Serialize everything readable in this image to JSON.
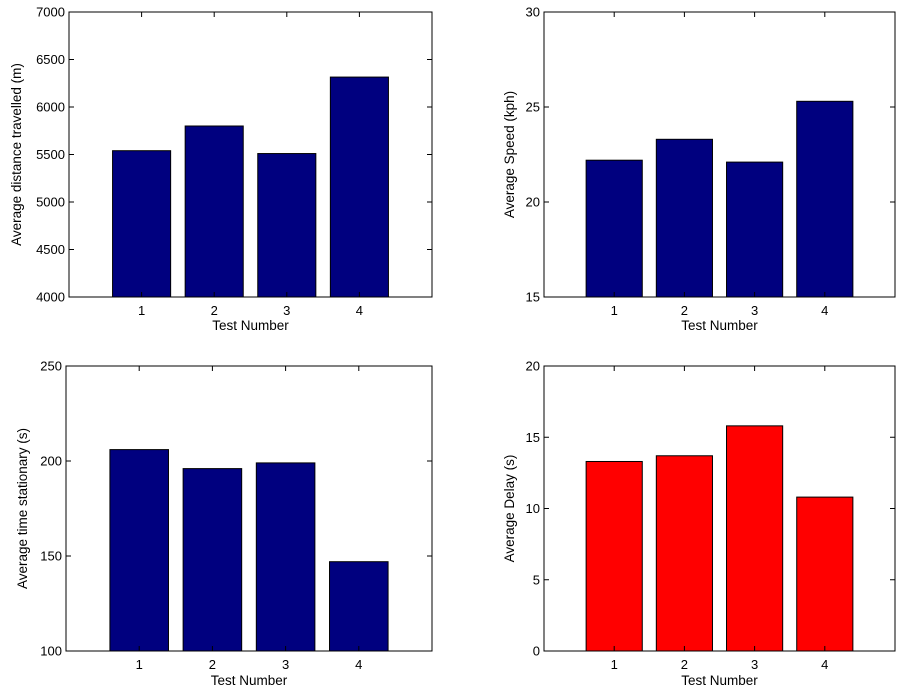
{
  "chart_data": [
    {
      "type": "bar",
      "categories": [
        "1",
        "2",
        "3",
        "4"
      ],
      "values": [
        5540,
        5800,
        5510,
        6315
      ],
      "xlabel": "Test Number",
      "ylabel": "Average distance travelled (m)",
      "ylim": [
        4000,
        7000
      ],
      "yticks": [
        "4000",
        "4500",
        "5000",
        "5500",
        "6000",
        "6500",
        "7000"
      ],
      "bar_color": "#00007f",
      "grid": false
    },
    {
      "type": "bar",
      "categories": [
        "1",
        "2",
        "3",
        "4"
      ],
      "values": [
        22.2,
        23.3,
        22.1,
        25.3
      ],
      "xlabel": "Test Number",
      "ylabel": "Average Speed (kph)",
      "ylim": [
        15,
        30
      ],
      "yticks": [
        "15",
        "20",
        "25",
        "30"
      ],
      "bar_color": "#00007f",
      "grid": false
    },
    {
      "type": "bar",
      "categories": [
        "1",
        "2",
        "3",
        "4"
      ],
      "values": [
        206,
        196,
        199,
        147
      ],
      "xlabel": "Test Number",
      "ylabel": "Average time stationary (s)",
      "ylim": [
        100,
        250
      ],
      "yticks": [
        "100",
        "150",
        "200",
        "250"
      ],
      "bar_color": "#00007f",
      "grid": false
    },
    {
      "type": "bar",
      "categories": [
        "1",
        "2",
        "3",
        "4"
      ],
      "values": [
        13.3,
        13.7,
        15.8,
        10.8
      ],
      "xlabel": "Test Number",
      "ylabel": "Average Delay (s)",
      "ylim": [
        0,
        20
      ],
      "yticks": [
        "0",
        "5",
        "10",
        "15",
        "20"
      ],
      "bar_color": "#ff0000",
      "grid": false
    }
  ]
}
